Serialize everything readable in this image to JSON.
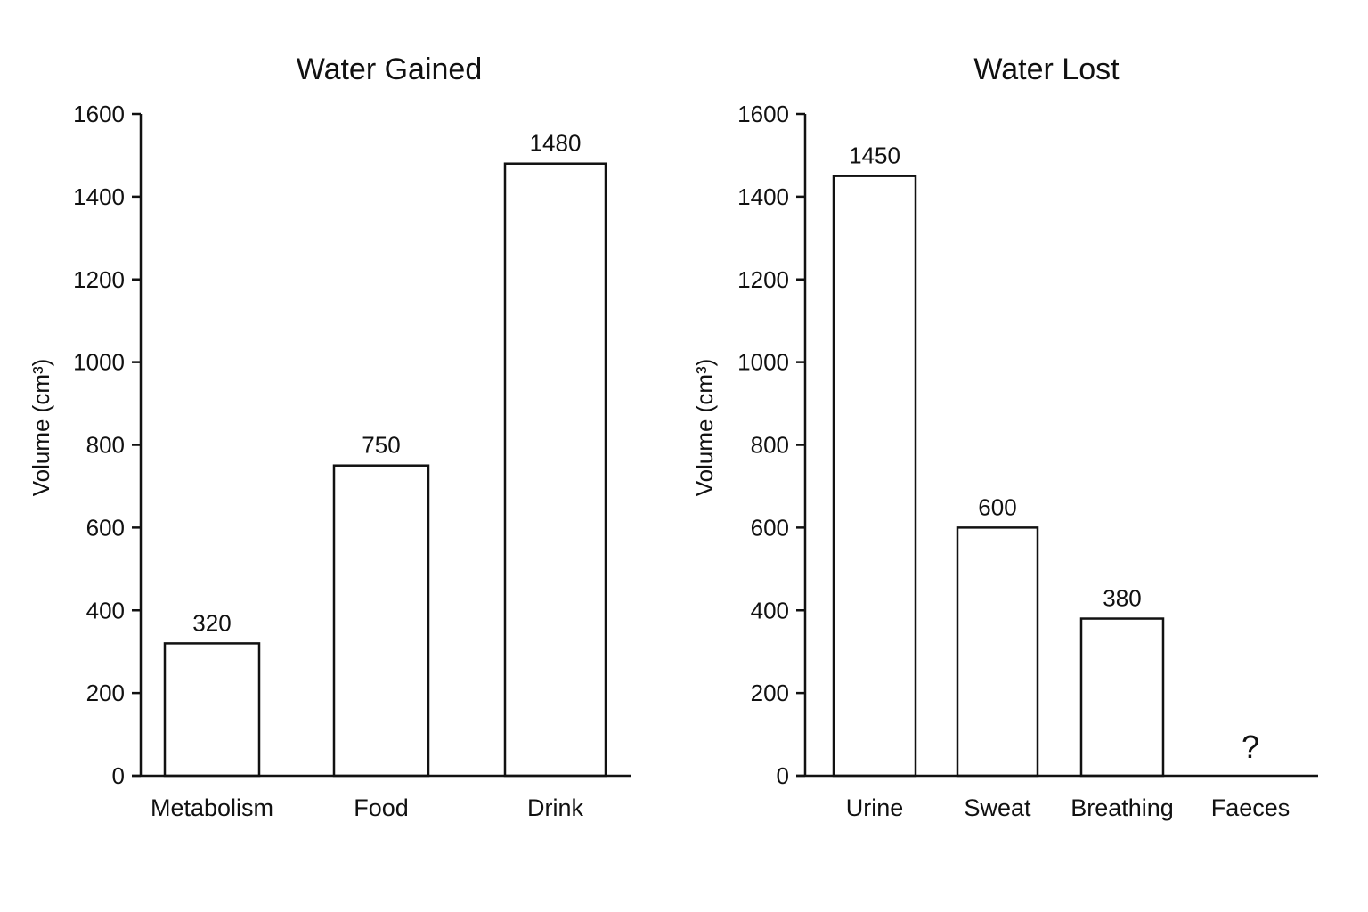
{
  "chart_data": [
    {
      "type": "bar",
      "title": "Water Gained",
      "ylabel": "Volume (cm³)",
      "xlabel": "",
      "ylim": [
        0,
        1600
      ],
      "yticks": [
        0,
        200,
        400,
        600,
        800,
        1000,
        1200,
        1400,
        1600
      ],
      "categories": [
        "Metabolism",
        "Food",
        "Drink"
      ],
      "values": [
        320,
        750,
        1480
      ],
      "value_labels": [
        "320",
        "750",
        "1480"
      ],
      "grid": false
    },
    {
      "type": "bar",
      "title": "Water Lost",
      "ylabel": "Volume (cm³)",
      "xlabel": "",
      "ylim": [
        0,
        1600
      ],
      "yticks": [
        0,
        200,
        400,
        600,
        800,
        1000,
        1200,
        1400,
        1600
      ],
      "categories": [
        "Urine",
        "Sweat",
        "Breathing",
        "Faeces"
      ],
      "values": [
        1450,
        600,
        380,
        null
      ],
      "value_labels": [
        "1450",
        "600",
        "380",
        "?"
      ],
      "grid": false
    }
  ]
}
